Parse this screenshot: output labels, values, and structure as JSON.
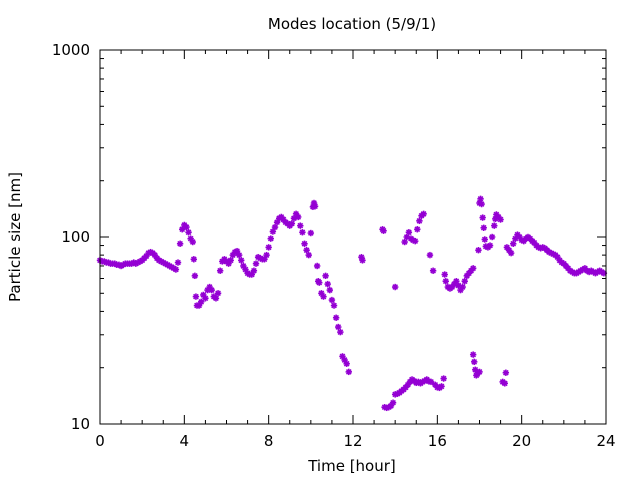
{
  "chart_data": {
    "type": "scatter",
    "title": "Modes location (5/9/1)",
    "xlabel": "Time [hour]",
    "ylabel": "Particle size [nm]",
    "xlim": [
      0,
      24
    ],
    "ylim": [
      10,
      1000
    ],
    "yscale": "log",
    "grid": false,
    "marker_color": "#9400d3",
    "xticks": [
      0,
      4,
      8,
      12,
      16,
      20,
      24
    ],
    "xtick_labels": [
      "0",
      "4",
      "8",
      "12",
      "16",
      "20",
      "24"
    ],
    "yticks": [
      10,
      100,
      1000
    ],
    "ytick_labels": [
      "10",
      "100",
      "1000"
    ],
    "series": [
      {
        "points": [
          [
            0.0,
            75
          ],
          [
            0.1,
            74
          ],
          [
            0.2,
            74
          ],
          [
            0.3,
            73
          ],
          [
            0.4,
            73
          ],
          [
            0.5,
            72
          ],
          [
            0.6,
            72
          ],
          [
            0.7,
            72
          ],
          [
            0.8,
            71
          ],
          [
            0.9,
            71
          ],
          [
            1.0,
            70
          ],
          [
            1.1,
            71
          ],
          [
            1.2,
            72
          ],
          [
            1.3,
            72
          ],
          [
            1.4,
            72
          ],
          [
            1.5,
            72
          ],
          [
            1.6,
            73
          ],
          [
            1.7,
            72
          ],
          [
            1.8,
            73
          ],
          [
            1.9,
            74
          ],
          [
            2.0,
            75
          ],
          [
            2.1,
            77
          ],
          [
            2.2,
            79
          ],
          [
            2.3,
            82
          ],
          [
            2.4,
            83
          ],
          [
            2.5,
            82
          ],
          [
            2.6,
            80
          ],
          [
            2.7,
            77
          ],
          [
            2.8,
            75
          ],
          [
            2.9,
            74
          ],
          [
            3.0,
            73
          ],
          [
            3.1,
            72
          ],
          [
            3.2,
            71
          ],
          [
            3.3,
            70
          ],
          [
            3.4,
            69
          ],
          [
            3.5,
            68
          ],
          [
            3.6,
            67
          ],
          [
            3.7,
            73
          ],
          [
            3.8,
            92
          ],
          [
            3.9,
            110
          ],
          [
            4.0,
            116
          ],
          [
            4.1,
            113
          ],
          [
            4.2,
            106
          ],
          [
            4.3,
            98
          ],
          [
            4.4,
            94
          ],
          [
            4.45,
            76
          ],
          [
            4.5,
            62
          ],
          [
            4.55,
            48
          ],
          [
            4.6,
            43
          ],
          [
            4.7,
            43
          ],
          [
            4.8,
            45
          ],
          [
            4.9,
            49
          ],
          [
            5.0,
            47
          ],
          [
            5.1,
            52
          ],
          [
            5.2,
            54
          ],
          [
            5.3,
            52
          ],
          [
            5.4,
            48
          ],
          [
            5.5,
            47
          ],
          [
            5.6,
            50
          ],
          [
            5.7,
            66
          ],
          [
            5.8,
            74
          ],
          [
            5.9,
            76
          ],
          [
            6.0,
            74
          ],
          [
            6.1,
            72
          ],
          [
            6.2,
            75
          ],
          [
            6.3,
            80
          ],
          [
            6.4,
            83
          ],
          [
            6.5,
            84
          ],
          [
            6.6,
            80
          ],
          [
            6.7,
            75
          ],
          [
            6.8,
            70
          ],
          [
            6.9,
            67
          ],
          [
            7.0,
            64
          ],
          [
            7.1,
            63
          ],
          [
            7.2,
            63
          ],
          [
            7.3,
            66
          ],
          [
            7.4,
            72
          ],
          [
            7.5,
            78
          ],
          [
            7.6,
            77
          ],
          [
            7.7,
            76
          ],
          [
            7.8,
            76
          ],
          [
            7.9,
            80
          ],
          [
            8.0,
            88
          ],
          [
            8.1,
            98
          ],
          [
            8.2,
            107
          ],
          [
            8.3,
            113
          ],
          [
            8.4,
            120
          ],
          [
            8.5,
            126
          ],
          [
            8.6,
            128
          ],
          [
            8.7,
            124
          ],
          [
            8.8,
            120
          ],
          [
            8.9,
            118
          ],
          [
            9.0,
            115
          ],
          [
            9.1,
            118
          ],
          [
            9.2,
            126
          ],
          [
            9.3,
            133
          ],
          [
            9.4,
            128
          ],
          [
            9.5,
            115
          ],
          [
            9.6,
            106
          ],
          [
            9.7,
            92
          ],
          [
            9.8,
            85
          ],
          [
            9.9,
            80
          ],
          [
            10.0,
            105
          ],
          [
            10.1,
            145
          ],
          [
            10.15,
            152
          ],
          [
            10.2,
            146
          ],
          [
            10.3,
            70
          ],
          [
            10.35,
            58
          ],
          [
            10.4,
            57
          ],
          [
            10.5,
            50
          ],
          [
            10.6,
            48
          ],
          [
            10.7,
            62
          ],
          [
            10.8,
            56
          ],
          [
            10.9,
            52
          ],
          [
            11.0,
            46
          ],
          [
            11.1,
            43
          ],
          [
            11.2,
            37
          ],
          [
            11.3,
            33
          ],
          [
            11.4,
            31
          ],
          [
            11.5,
            23
          ],
          [
            11.6,
            22
          ],
          [
            11.7,
            21
          ],
          [
            11.8,
            19
          ],
          [
            12.4,
            78
          ],
          [
            12.45,
            75
          ],
          [
            13.4,
            110
          ],
          [
            13.45,
            108
          ],
          [
            13.5,
            12.3
          ],
          [
            13.6,
            12.2
          ],
          [
            13.7,
            12.3
          ],
          [
            13.8,
            12.5
          ],
          [
            13.9,
            13
          ],
          [
            14.0,
            14.4
          ],
          [
            14.0,
            54
          ],
          [
            14.1,
            14.5
          ],
          [
            14.2,
            14.7
          ],
          [
            14.3,
            15
          ],
          [
            14.4,
            15.3
          ],
          [
            14.45,
            94
          ],
          [
            14.5,
            15.7
          ],
          [
            14.55,
            100
          ],
          [
            14.6,
            16.2
          ],
          [
            14.65,
            106
          ],
          [
            14.7,
            16.8
          ],
          [
            14.75,
            98
          ],
          [
            14.8,
            17.3
          ],
          [
            14.85,
            96
          ],
          [
            14.9,
            17
          ],
          [
            14.95,
            95
          ],
          [
            15.0,
            16.6
          ],
          [
            15.05,
            110
          ],
          [
            15.1,
            16.8
          ],
          [
            15.15,
            122
          ],
          [
            15.2,
            16.5
          ],
          [
            15.25,
            130
          ],
          [
            15.3,
            16.8
          ],
          [
            15.35,
            133
          ],
          [
            15.4,
            17
          ],
          [
            15.5,
            17.3
          ],
          [
            15.6,
            16.9
          ],
          [
            15.65,
            80
          ],
          [
            15.7,
            16.8
          ],
          [
            15.8,
            66
          ],
          [
            15.9,
            16.2
          ],
          [
            16.0,
            15.7
          ],
          [
            16.1,
            15.6
          ],
          [
            16.2,
            15.9
          ],
          [
            16.3,
            17.5
          ],
          [
            16.35,
            63
          ],
          [
            16.4,
            58
          ],
          [
            16.5,
            54
          ],
          [
            16.6,
            53
          ],
          [
            16.7,
            54
          ],
          [
            16.8,
            56
          ],
          [
            16.9,
            58
          ],
          [
            17.0,
            55
          ],
          [
            17.1,
            52
          ],
          [
            17.2,
            54
          ],
          [
            17.3,
            58
          ],
          [
            17.4,
            62
          ],
          [
            17.5,
            64
          ],
          [
            17.6,
            66
          ],
          [
            17.7,
            68
          ],
          [
            17.7,
            23.5
          ],
          [
            17.75,
            21.5
          ],
          [
            17.8,
            19.5
          ],
          [
            17.85,
            18.2
          ],
          [
            17.9,
            18.5
          ],
          [
            17.95,
            85
          ],
          [
            18.0,
            19
          ],
          [
            18.0,
            152
          ],
          [
            18.05,
            160
          ],
          [
            18.1,
            150
          ],
          [
            18.15,
            127
          ],
          [
            18.2,
            112
          ],
          [
            18.25,
            97
          ],
          [
            18.3,
            89
          ],
          [
            18.4,
            88
          ],
          [
            18.5,
            90
          ],
          [
            18.6,
            100
          ],
          [
            18.7,
            115
          ],
          [
            18.75,
            125
          ],
          [
            18.8,
            132
          ],
          [
            18.9,
            128
          ],
          [
            19.0,
            124
          ],
          [
            19.1,
            16.8
          ],
          [
            19.2,
            16.5
          ],
          [
            19.25,
            18.8
          ],
          [
            19.3,
            88
          ],
          [
            19.4,
            85
          ],
          [
            19.5,
            82
          ],
          [
            19.6,
            92
          ],
          [
            19.7,
            98
          ],
          [
            19.8,
            103
          ],
          [
            19.9,
            100
          ],
          [
            20.0,
            96
          ],
          [
            20.1,
            95
          ],
          [
            20.2,
            98
          ],
          [
            20.3,
            100
          ],
          [
            20.4,
            98
          ],
          [
            20.5,
            95
          ],
          [
            20.6,
            93
          ],
          [
            20.7,
            90
          ],
          [
            20.8,
            88
          ],
          [
            20.9,
            87
          ],
          [
            21.0,
            88
          ],
          [
            21.1,
            87
          ],
          [
            21.2,
            85
          ],
          [
            21.3,
            83
          ],
          [
            21.4,
            82
          ],
          [
            21.5,
            81
          ],
          [
            21.6,
            80
          ],
          [
            21.7,
            78
          ],
          [
            21.8,
            75
          ],
          [
            21.9,
            73
          ],
          [
            22.0,
            72
          ],
          [
            22.1,
            70
          ],
          [
            22.2,
            68
          ],
          [
            22.3,
            66
          ],
          [
            22.4,
            65
          ],
          [
            22.5,
            64
          ],
          [
            22.6,
            64
          ],
          [
            22.7,
            65
          ],
          [
            22.8,
            66
          ],
          [
            22.9,
            67
          ],
          [
            23.0,
            68
          ],
          [
            23.1,
            66
          ],
          [
            23.2,
            65
          ],
          [
            23.3,
            66
          ],
          [
            23.4,
            65
          ],
          [
            23.5,
            64
          ],
          [
            23.6,
            65
          ],
          [
            23.7,
            66
          ],
          [
            23.8,
            65
          ],
          [
            23.9,
            64
          ]
        ]
      }
    ]
  }
}
